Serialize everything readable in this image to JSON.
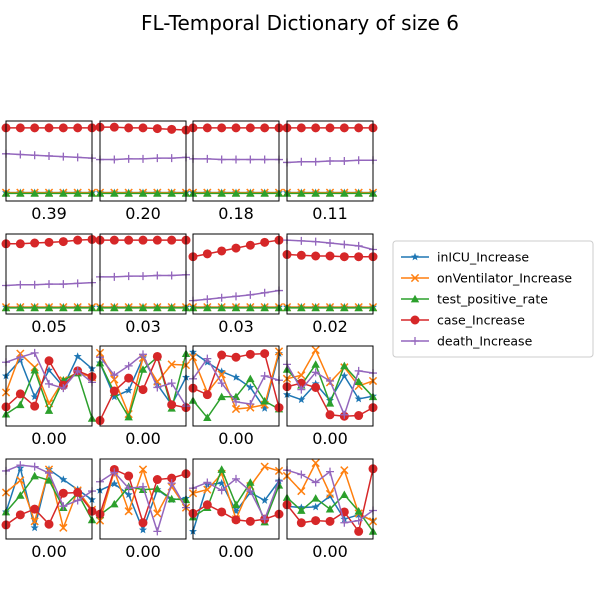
{
  "chart_data": {
    "type": "line",
    "title": "FL-Temporal Dictionary of size 6",
    "ylim": [
      0,
      1
    ],
    "x": [
      0,
      1,
      2,
      3,
      4,
      5,
      6
    ],
    "legend": {
      "placement": "center-right",
      "entries": [
        {
          "name": "inICU_Increase",
          "color": "#1f77b4",
          "marker": "star"
        },
        {
          "name": "onVentilator_Increase",
          "color": "#ff7f0e",
          "marker": "x"
        },
        {
          "name": "test_positive_rate",
          "color": "#2ca02c",
          "marker": "triangle"
        },
        {
          "name": "case_Increase",
          "color": "#d62728",
          "marker": "circle"
        },
        {
          "name": "death_Increase",
          "color": "#9467bd",
          "marker": "plus"
        }
      ]
    },
    "panels": [
      {
        "label": "0.39",
        "series": [
          [
            0.06,
            0.06,
            0.06,
            0.06,
            0.06,
            0.06,
            0.06
          ],
          [
            0.06,
            0.06,
            0.06,
            0.06,
            0.06,
            0.06,
            0.06
          ],
          [
            0.05,
            0.05,
            0.05,
            0.05,
            0.05,
            0.05,
            0.05
          ],
          [
            0.96,
            0.96,
            0.96,
            0.96,
            0.96,
            0.96,
            0.96
          ],
          [
            0.6,
            0.59,
            0.58,
            0.57,
            0.56,
            0.55,
            0.54
          ]
        ]
      },
      {
        "label": "0.20",
        "series": [
          [
            0.06,
            0.06,
            0.06,
            0.06,
            0.06,
            0.06,
            0.06
          ],
          [
            0.06,
            0.06,
            0.06,
            0.06,
            0.06,
            0.06,
            0.06
          ],
          [
            0.05,
            0.05,
            0.05,
            0.05,
            0.05,
            0.05,
            0.05
          ],
          [
            0.97,
            0.97,
            0.96,
            0.96,
            0.95,
            0.94,
            0.93
          ],
          [
            0.52,
            0.52,
            0.53,
            0.53,
            0.54,
            0.54,
            0.55
          ]
        ]
      },
      {
        "label": "0.18",
        "series": [
          [
            0.06,
            0.06,
            0.06,
            0.06,
            0.06,
            0.06,
            0.06
          ],
          [
            0.06,
            0.06,
            0.06,
            0.06,
            0.06,
            0.06,
            0.06
          ],
          [
            0.05,
            0.05,
            0.05,
            0.05,
            0.05,
            0.05,
            0.05
          ],
          [
            0.96,
            0.96,
            0.96,
            0.96,
            0.96,
            0.96,
            0.96
          ],
          [
            0.53,
            0.53,
            0.52,
            0.52,
            0.52,
            0.52,
            0.52
          ]
        ]
      },
      {
        "label": "0.11",
        "series": [
          [
            0.06,
            0.06,
            0.06,
            0.06,
            0.06,
            0.06,
            0.06
          ],
          [
            0.06,
            0.06,
            0.06,
            0.06,
            0.06,
            0.06,
            0.06
          ],
          [
            0.05,
            0.05,
            0.05,
            0.05,
            0.05,
            0.05,
            0.05
          ],
          [
            0.96,
            0.96,
            0.96,
            0.96,
            0.96,
            0.96,
            0.96
          ],
          [
            0.48,
            0.49,
            0.49,
            0.5,
            0.5,
            0.51,
            0.51
          ]
        ]
      },
      {
        "label": "0.05",
        "series": [
          [
            0.04,
            0.04,
            0.04,
            0.04,
            0.04,
            0.04,
            0.04
          ],
          [
            0.04,
            0.04,
            0.04,
            0.04,
            0.04,
            0.04,
            0.04
          ],
          [
            0.03,
            0.03,
            0.03,
            0.03,
            0.03,
            0.03,
            0.03
          ],
          [
            0.92,
            0.92,
            0.93,
            0.94,
            0.95,
            0.97,
            0.98
          ],
          [
            0.34,
            0.35,
            0.35,
            0.36,
            0.36,
            0.37,
            0.38
          ]
        ]
      },
      {
        "label": "0.03",
        "series": [
          [
            0.04,
            0.04,
            0.04,
            0.04,
            0.04,
            0.04,
            0.04
          ],
          [
            0.04,
            0.04,
            0.04,
            0.04,
            0.04,
            0.04,
            0.04
          ],
          [
            0.03,
            0.03,
            0.03,
            0.03,
            0.03,
            0.03,
            0.03
          ],
          [
            0.97,
            0.97,
            0.97,
            0.97,
            0.97,
            0.97,
            0.97
          ],
          [
            0.46,
            0.46,
            0.47,
            0.47,
            0.48,
            0.48,
            0.49
          ]
        ]
      },
      {
        "label": "0.03",
        "series": [
          [
            0.04,
            0.04,
            0.04,
            0.04,
            0.04,
            0.04,
            0.04
          ],
          [
            0.04,
            0.04,
            0.04,
            0.04,
            0.04,
            0.04,
            0.04
          ],
          [
            0.03,
            0.03,
            0.03,
            0.03,
            0.03,
            0.03,
            0.03
          ],
          [
            0.74,
            0.78,
            0.82,
            0.86,
            0.9,
            0.94,
            0.97
          ],
          [
            0.13,
            0.15,
            0.17,
            0.19,
            0.21,
            0.24,
            0.27
          ]
        ]
      },
      {
        "label": "0.02",
        "series": [
          [
            0.04,
            0.04,
            0.04,
            0.04,
            0.04,
            0.04,
            0.04
          ],
          [
            0.04,
            0.04,
            0.04,
            0.04,
            0.04,
            0.04,
            0.04
          ],
          [
            0.03,
            0.03,
            0.03,
            0.03,
            0.03,
            0.03,
            0.03
          ],
          [
            0.77,
            0.76,
            0.75,
            0.75,
            0.74,
            0.74,
            0.74
          ],
          [
            0.97,
            0.96,
            0.95,
            0.93,
            0.91,
            0.89,
            0.84
          ]
        ]
      },
      {
        "label": "0.00",
        "series": [
          [
            0.64,
            0.86,
            0.35,
            0.72,
            0.49,
            0.91,
            0.74
          ],
          [
            0.41,
            0.95,
            0.76,
            0.26,
            0.58,
            0.69,
            0.62
          ],
          [
            0.11,
            0.24,
            0.72,
            0.16,
            0.58,
            0.68,
            0.05
          ],
          [
            0.21,
            0.39,
            0.22,
            0.85,
            0.51,
            0.71,
            0.63
          ],
          [
            0.83,
            0.9,
            0.96,
            0.53,
            0.47,
            0.71,
            0.55
          ]
        ]
      },
      {
        "label": "0.00",
        "series": [
          [
            0.82,
            0.35,
            0.44,
            0.89,
            0.52,
            0.24,
            0.62
          ],
          [
            0.96,
            0.59,
            0.11,
            0.89,
            0.56,
            0.8,
            0.79
          ],
          [
            0.82,
            0.41,
            0.07,
            0.73,
            0.9,
            0.19,
            0.95
          ],
          [
            0.02,
            0.43,
            0.61,
            0.45,
            0.91,
            0.24,
            0.2
          ],
          [
            0.9,
            0.65,
            0.78,
            0.94,
            0.48,
            0.54,
            0.22
          ]
        ]
      },
      {
        "label": "0.00",
        "series": [
          [
            0.97,
            0.83,
            0.7,
            0.62,
            0.48,
            0.19,
            0.95
          ],
          [
            0.9,
            0.41,
            0.66,
            0.18,
            0.2,
            0.24,
            0.98
          ],
          [
            0.3,
            0.06,
            0.35,
            0.35,
            0.6,
            0.29,
            0.18
          ],
          [
            0.47,
            0.38,
            0.93,
            0.9,
            0.94,
            0.95,
            0.2
          ],
          [
            0.6,
            0.88,
            0.54,
            0.28,
            0.25,
            0.64,
            0.58
          ]
        ]
      },
      {
        "label": "0.00",
        "series": [
          [
            0.38,
            0.31,
            0.53,
            0.3,
            0.64,
            0.32,
            0.36
          ],
          [
            0.6,
            0.65,
            1.0,
            0.55,
            0.76,
            0.5,
            0.57
          ],
          [
            0.73,
            0.51,
            0.8,
            0.26,
            0.78,
            0.56,
            0.35
          ],
          [
            0.49,
            0.54,
            0.48,
            0.1,
            0.08,
            0.09,
            0.2
          ],
          [
            0.8,
            0.45,
            0.69,
            0.57,
            0.1,
            0.71,
            0.68
          ]
        ]
      },
      {
        "label": "0.00",
        "series": [
          [
            0.32,
            0.93,
            0.1,
            0.91,
            0.77,
            0.63,
            0.49
          ],
          [
            0.59,
            0.76,
            0.19,
            0.91,
            0.1,
            0.62,
            0.35
          ],
          [
            0.32,
            0.55,
            0.82,
            0.76,
            0.38,
            0.58,
            0.21
          ],
          [
            0.14,
            0.28,
            0.36,
            0.15,
            0.58,
            0.59,
            0.33
          ],
          [
            0.89,
            0.97,
            0.95,
            0.86,
            0.4,
            0.48,
            0.61
          ]
        ]
      },
      {
        "label": "0.00",
        "series": [
          [
            0.62,
            0.71,
            0.56,
            0.07,
            0.63,
            0.49,
            0.51
          ],
          [
            0.2,
            0.89,
            0.33,
            0.91,
            0.3,
            0.67,
            0.38
          ],
          [
            0.28,
            0.43,
            0.67,
            0.63,
            0.64,
            0.5,
            0.49
          ],
          [
            0.29,
            0.91,
            0.82,
            0.17,
            0.77,
            0.79,
            0.85
          ],
          [
            0.74,
            0.87,
            0.65,
            0.67,
            0.05,
            0.72,
            0.38
          ]
        ]
      },
      {
        "label": "0.00",
        "series": [
          [
            0.05,
            0.7,
            0.72,
            0.33,
            0.59,
            0.48,
            0.75
          ],
          [
            0.58,
            0.63,
            0.85,
            0.22,
            0.68,
            0.95,
            0.89
          ],
          [
            0.25,
            0.38,
            0.91,
            0.42,
            0.73,
            0.18,
            0.69
          ],
          [
            0.3,
            0.42,
            0.32,
            0.21,
            0.19,
            0.22,
            0.29
          ],
          [
            0.65,
            0.73,
            0.62,
            0.78,
            0.61,
            0.22,
            0.75
          ]
        ]
      },
      {
        "label": "0.00",
        "series": [
          [
            0.4,
            0.38,
            0.39,
            0.54,
            0.22,
            0.28,
            0.2
          ],
          [
            0.82,
            0.61,
            1.0,
            0.57,
            0.9,
            0.3,
            0.19
          ],
          [
            0.52,
            0.34,
            0.51,
            0.36,
            0.56,
            0.33,
            0.05
          ],
          [
            0.42,
            0.17,
            0.2,
            0.19,
            0.32,
            0.05,
            0.92
          ],
          [
            0.9,
            0.84,
            0.73,
            0.88,
            0.17,
            0.2,
            0.34
          ]
        ]
      }
    ]
  }
}
